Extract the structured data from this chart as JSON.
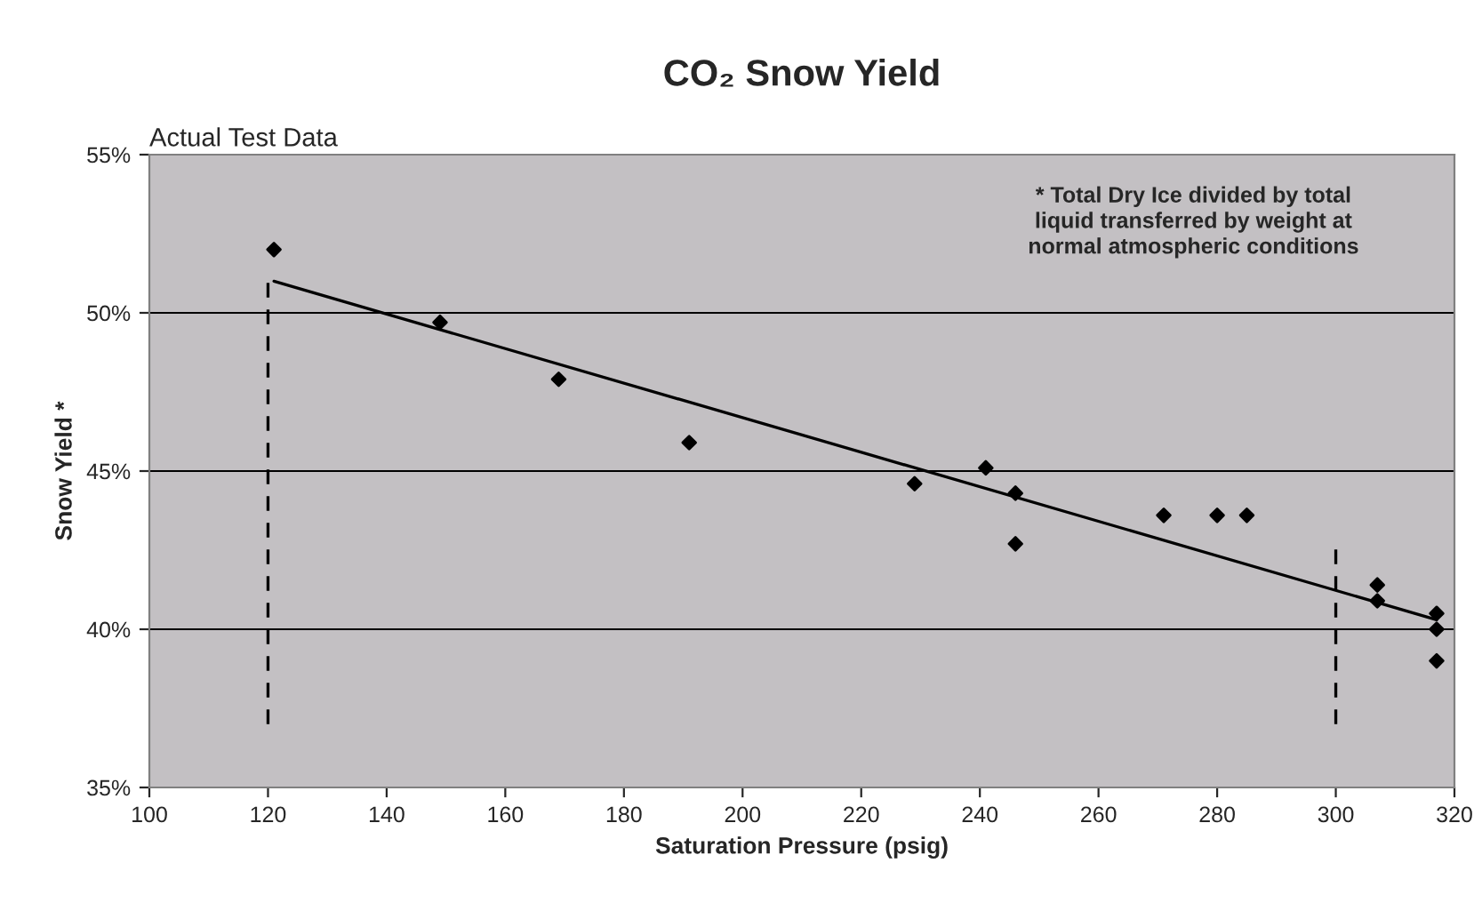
{
  "chart_data": {
    "type": "scatter",
    "title": "CO₂ Snow Yield",
    "xlabel": "Saturation Pressure (psig)",
    "ylabel": "Snow Yield *",
    "annotations": [
      "Actual Test Data",
      "* Total Dry Ice divided by total\nliquid transferred by weight at\nnormal atmospheric conditions"
    ],
    "series": [
      {
        "color": "#000000",
        "marker": "diamond",
        "x": [
          121,
          149,
          169,
          191,
          229,
          241,
          246,
          246,
          271,
          280,
          285,
          307,
          307,
          317,
          317,
          317
        ],
        "values": [
          52.0,
          49.7,
          47.9,
          45.9,
          44.6,
          45.1,
          44.3,
          42.7,
          43.6,
          43.6,
          43.6,
          41.4,
          40.9,
          40.5,
          40.0,
          39.0
        ]
      },
      {
        "type": "line",
        "color": "#000000",
        "line_style": "solid",
        "x": [
          121,
          317
        ],
        "values": [
          51.0,
          40.3
        ]
      },
      {
        "type": "line",
        "color": "#000000",
        "line_style": "dashed",
        "x": [
          120,
          120
        ],
        "values": [
          37.0,
          51.2
        ]
      },
      {
        "type": "line",
        "color": "#000000",
        "line_style": "dashed",
        "x": [
          300,
          300
        ],
        "values": [
          37.0,
          42.6
        ]
      }
    ],
    "xlim": [
      100,
      320
    ],
    "xticks": [
      100,
      120,
      140,
      160,
      180,
      200,
      220,
      240,
      260,
      280,
      300,
      320
    ],
    "ylim": [
      35,
      55
    ],
    "yticks": [
      {
        "value": 35,
        "label": "35%"
      },
      {
        "value": 40,
        "label": "40%"
      },
      {
        "value": 45,
        "label": "45%"
      },
      {
        "value": 50,
        "label": "50%"
      },
      {
        "value": 55,
        "label": "55%"
      }
    ],
    "grid": "y",
    "legend": false
  }
}
